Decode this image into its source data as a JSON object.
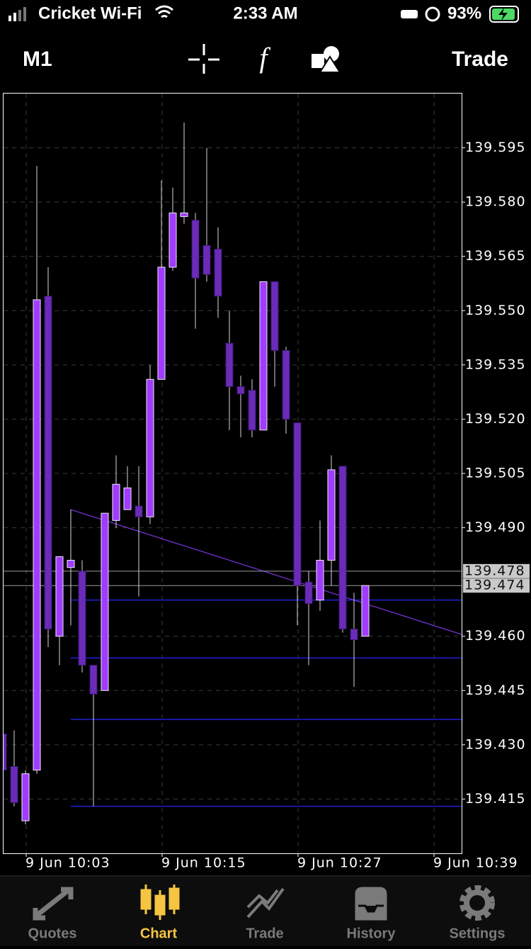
{
  "status_bar": {
    "carrier": "Cricket Wi-Fi",
    "time": "2:33 AM",
    "battery": "93%"
  },
  "toolbar": {
    "timeframe": "M1",
    "trade": "Trade"
  },
  "chart_data": {
    "type": "candlestick",
    "categories": [
      null,
      null,
      "9 Jun 10:03",
      null,
      null,
      null,
      null,
      null,
      null,
      null,
      null,
      null,
      null,
      null,
      "9 Jun 10:15",
      null,
      null,
      null,
      null,
      null,
      null,
      null,
      null,
      null,
      null,
      null,
      "9 Jun 10:27",
      null,
      null,
      null,
      null,
      null,
      null,
      null,
      null,
      null,
      null,
      null,
      "9 Jun 10:39",
      null
    ],
    "open": [
      139.433,
      139.424,
      139.409,
      139.423,
      139.554,
      139.46,
      139.479,
      139.478,
      139.452,
      139.445,
      139.492,
      139.495,
      139.496,
      139.493,
      139.531,
      139.562,
      139.576,
      139.575,
      139.568,
      139.567,
      139.541,
      139.529,
      139.528,
      139.517,
      139.558,
      139.539,
      139.519,
      139.475,
      139.47,
      139.481,
      139.507,
      139.462,
      139.46,
      null,
      null,
      null,
      null,
      null,
      null,
      null
    ],
    "high": [
      139.433,
      139.434,
      139.423,
      139.59,
      139.562,
      139.482,
      139.495,
      139.481,
      139.452,
      139.494,
      139.51,
      139.507,
      139.507,
      139.535,
      139.586,
      139.584,
      139.602,
      139.577,
      139.595,
      139.573,
      139.55,
      139.532,
      139.531,
      139.558,
      139.558,
      139.54,
      139.519,
      139.478,
      139.492,
      139.51,
      139.507,
      139.472,
      139.474,
      null,
      null,
      null,
      null,
      null,
      null,
      null
    ],
    "low": [
      139.423,
      139.413,
      139.408,
      139.422,
      139.457,
      139.452,
      139.463,
      139.45,
      139.413,
      139.445,
      139.49,
      139.495,
      139.471,
      139.491,
      139.531,
      139.561,
      139.574,
      139.545,
      139.558,
      139.548,
      139.517,
      139.515,
      139.515,
      139.517,
      139.529,
      139.516,
      139.463,
      139.452,
      139.467,
      139.474,
      139.461,
      139.446,
      139.46,
      null,
      null,
      null,
      null,
      null,
      null,
      null
    ],
    "close": [
      139.423,
      139.414,
      139.422,
      139.553,
      139.462,
      139.482,
      139.481,
      139.452,
      139.444,
      139.494,
      139.502,
      139.501,
      139.493,
      139.531,
      139.562,
      139.577,
      139.577,
      139.559,
      139.56,
      139.554,
      139.529,
      139.527,
      139.517,
      139.558,
      139.539,
      139.52,
      139.474,
      139.469,
      139.481,
      139.506,
      139.462,
      139.459,
      139.474,
      null,
      null,
      null,
      null,
      null,
      null,
      null
    ],
    "up_color": "#a13cff",
    "down_color": "#6a2cb8",
    "ylim": [
      139.4,
      139.61
    ],
    "yticks": [
      {
        "value": 139.415,
        "label": "139.415"
      },
      {
        "value": 139.43,
        "label": "139.430"
      },
      {
        "value": 139.445,
        "label": "139.445"
      },
      {
        "value": 139.46,
        "label": "139.460"
      },
      {
        "value": 139.49,
        "label": "139.490"
      },
      {
        "value": 139.505,
        "label": "139.505"
      },
      {
        "value": 139.52,
        "label": "139.520"
      },
      {
        "value": 139.535,
        "label": "139.535"
      },
      {
        "value": 139.55,
        "label": "139.550"
      },
      {
        "value": 139.565,
        "label": "139.565"
      },
      {
        "value": 139.58,
        "label": "139.580"
      },
      {
        "value": 139.595,
        "label": "139.595"
      }
    ],
    "grid": true,
    "price_lines": [
      139.478,
      139.474
    ],
    "levels": [
      139.47,
      139.454,
      139.437,
      139.413
    ],
    "level_color": "#1f1fd6",
    "trend_line": {
      "x": [
        6,
        32
      ],
      "values": [
        139.495,
        139.469
      ],
      "color": "#7a36e0"
    }
  },
  "tab_bar": {
    "items": [
      "Quotes",
      "Chart",
      "Trade",
      "History",
      "Settings"
    ],
    "active": 1
  }
}
